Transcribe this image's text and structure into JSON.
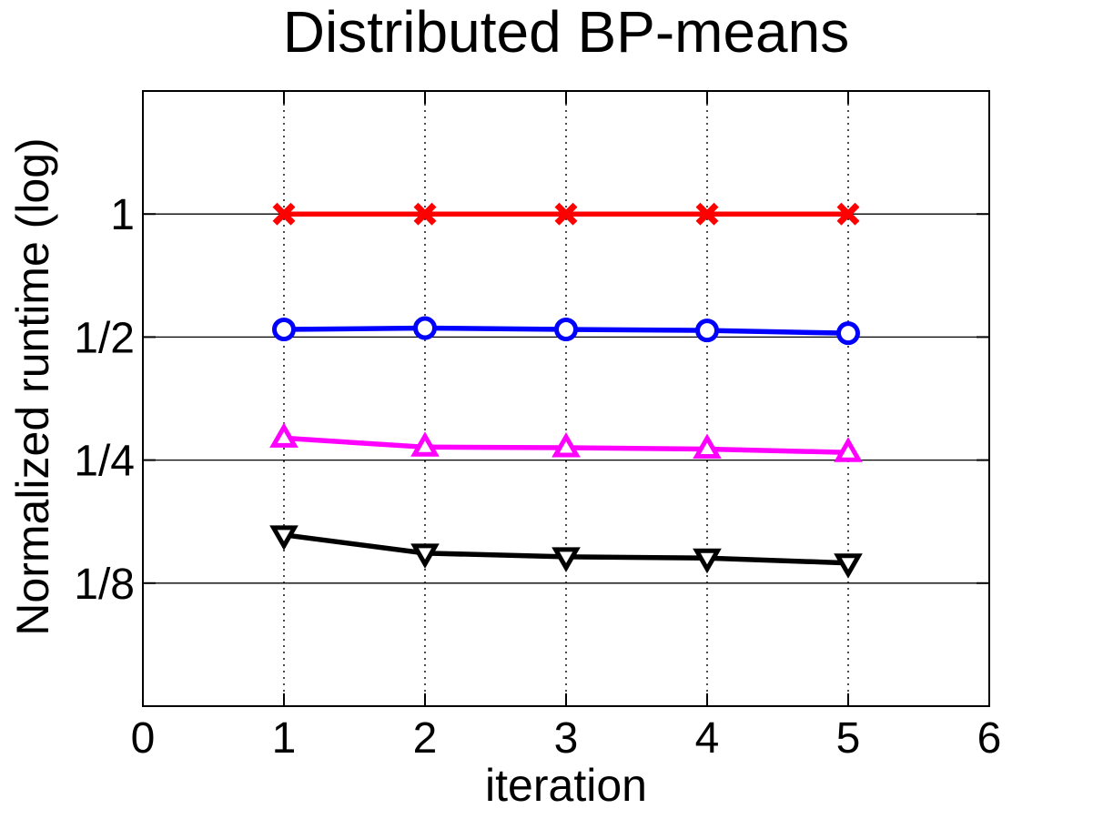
{
  "chart_data": {
    "type": "line",
    "title": "Distributed BP-means",
    "xlabel": "iteration",
    "ylabel": "Normalized runtime (log)",
    "x": [
      1,
      2,
      3,
      4,
      5
    ],
    "xlim": [
      0,
      6
    ],
    "xticks": [
      0,
      1,
      2,
      3,
      4,
      5,
      6
    ],
    "xgrid": [
      1,
      2,
      3,
      4,
      5
    ],
    "yscale": "log2",
    "ylim": [
      0.0625,
      2
    ],
    "yticks": [
      {
        "value": 1,
        "label": "1"
      },
      {
        "value": 0.5,
        "label": "1/2"
      },
      {
        "value": 0.25,
        "label": "1/4"
      },
      {
        "value": 0.125,
        "label": "1/8"
      }
    ],
    "grid": {
      "horizontal": "solid",
      "vertical": "dotted"
    },
    "legend": "none",
    "series": [
      {
        "name": "red-x-series",
        "color": "#ff0000",
        "marker": "x",
        "values": [
          1.0,
          1.0,
          1.0,
          1.0,
          1.0
        ]
      },
      {
        "name": "blue-circle-series",
        "color": "#0000ff",
        "marker": "circle",
        "values": [
          0.522,
          0.526,
          0.522,
          0.519,
          0.511
        ]
      },
      {
        "name": "magenta-triangle-up-series",
        "color": "#ff00ff",
        "marker": "triangle-up",
        "values": [
          0.283,
          0.269,
          0.268,
          0.266,
          0.261
        ]
      },
      {
        "name": "black-triangle-down-series",
        "color": "#000000",
        "marker": "triangle-down",
        "values": [
          0.164,
          0.148,
          0.145,
          0.144,
          0.14
        ]
      }
    ]
  }
}
